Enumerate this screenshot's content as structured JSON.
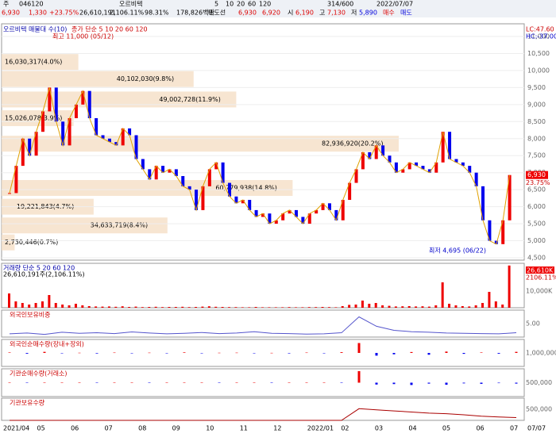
{
  "toolbar": {
    "period": "주",
    "code": "046120",
    "name": "오르비텍",
    "intervals": [
      "5",
      "10",
      "20",
      "60",
      "120"
    ],
    "count": "314/600",
    "date": "2022/07/07"
  },
  "quote": {
    "price": "6,930",
    "change": "1,330",
    "rate": "+23.75%",
    "volume": "26,610,191",
    "vol_rate": "2,106.11%",
    "ratio": "98.31%",
    "amount": "178,826백만",
    "label": "매도선",
    "ask": "6,930",
    "bid": "6,920",
    "open_label": "시",
    "open": "6,190",
    "high_label": "고",
    "high": "7,130",
    "low_label": "저",
    "low": "5,890",
    "buy": "매수",
    "sell": "매도"
  },
  "price_panel": {
    "legend": "오르비텍 매물대 수(10)",
    "ma_legend": "종가 단순 5 10 20 60 120",
    "lc": "LC:47.60",
    "hc": "HC:-37.00",
    "high_note": "최고 11,000 (05/12)",
    "low_note": "최저 4,695 (06/22)",
    "current": "6,930",
    "current_rate": "23.75%",
    "ylim": [
      4500,
      11000
    ],
    "yticks": [
      {
        "value": 4500,
        "label": "4,500"
      },
      {
        "value": 5000,
        "label": "5,000"
      },
      {
        "value": 5500,
        "label": "5,500"
      },
      {
        "value": 6000,
        "label": "6,000"
      },
      {
        "value": 6500,
        "label": "6,500"
      },
      {
        "value": 7000,
        "label": "7,000"
      },
      {
        "value": 7500,
        "label": "7,500"
      },
      {
        "value": 8000,
        "label": "8,000"
      },
      {
        "value": 8500,
        "label": "8,500"
      },
      {
        "value": 9000,
        "label": "9,000"
      },
      {
        "value": 9500,
        "label": "9,500"
      },
      {
        "value": 10000,
        "label": "10,000"
      },
      {
        "value": 10500,
        "label": "10,500"
      },
      {
        "value": 11000,
        "label": "11,000"
      }
    ],
    "closes": [
      6400,
      7200,
      8000,
      7500,
      8200,
      8800,
      9500,
      8500,
      7800,
      8600,
      9000,
      9400,
      8600,
      8100,
      8000,
      7900,
      7800,
      8300,
      8100,
      7400,
      7100,
      6800,
      7200,
      7000,
      7100,
      6900,
      6600,
      6500,
      5900,
      6600,
      7100,
      7300,
      6700,
      6300,
      6100,
      6200,
      5900,
      5700,
      5800,
      5500,
      5600,
      5800,
      5900,
      5700,
      5500,
      5800,
      5900,
      6100,
      5900,
      5600,
      6200,
      6700,
      7100,
      7600,
      7400,
      7800,
      7500,
      7300,
      7000,
      7100,
      7300,
      7200,
      7100,
      7000,
      7300,
      8200,
      7400,
      7300,
      7200,
      7000,
      6600,
      5600,
      5000,
      4900,
      5600,
      6930
    ],
    "profile": [
      {
        "value": 16030317,
        "label": "16,030,317(4.0%)",
        "price": 10250
      },
      {
        "value": 40102030,
        "label": "40,102,030(9.8%)",
        "price": 9750
      },
      {
        "value": 49002728,
        "label": "49,002,728(11.9%)",
        "price": 9150
      },
      {
        "value": 15026078,
        "label": "15,026,078(3.9%)",
        "price": 8600
      },
      {
        "value": 82936920,
        "label": "82,936,920(20.2%)",
        "price": 7850
      },
      {
        "value": 60779938,
        "label": "60,779,938(14.8%)",
        "price": 6550
      },
      {
        "value": 19221843,
        "label": "19,221,843(4.7%)",
        "price": 6000
      },
      {
        "value": 34633719,
        "label": "34,633,719(8.4%)",
        "price": 5450
      },
      {
        "value": 2730446,
        "label": "2,730,446(0.7%)",
        "price": 4950
      }
    ]
  },
  "volume_panel": {
    "legend": "거래량 단순 5 20 60 120",
    "summary": "26,610,191주(2,106.11%)",
    "right_value": "26,610K",
    "right_rate": "2106.11%",
    "tick": "10,000K",
    "ylim": [
      0,
      27000
    ],
    "values": [
      9000,
      4000,
      3000,
      2000,
      3000,
      4000,
      8000,
      3000,
      2000,
      1500,
      2500,
      1500,
      1000,
      800,
      700,
      800,
      600,
      900,
      500,
      700,
      400,
      500,
      600,
      400,
      500,
      500,
      600,
      400,
      500,
      700,
      900,
      600,
      500,
      400,
      400,
      300,
      300,
      500,
      300,
      300,
      300,
      300,
      400,
      300,
      300,
      400,
      400,
      500,
      400,
      300,
      1000,
      1800,
      2000,
      4500,
      2500,
      3000,
      1500,
      1200,
      800,
      900,
      1000,
      800,
      900,
      700,
      1500,
      16000,
      2500,
      1500,
      1000,
      800,
      1500,
      3000,
      10000,
      4000,
      2000,
      26610
    ]
  },
  "foreign_panel": {
    "title": "외국인보유비중",
    "tick": "5.00",
    "ylim": [
      0,
      10
    ],
    "values": [
      1.2,
      1.5,
      1.0,
      1.8,
      1.4,
      1.6,
      1.3,
      1.9,
      1.5,
      1.2,
      1.4,
      1.7,
      1.3,
      1.5,
      2.0,
      1.4,
      1.3,
      1.1,
      1.2,
      1.6,
      7.5,
      4.0,
      2.5,
      2.0,
      1.8,
      1.5,
      1.4,
      1.3,
      1.2,
      1.6
    ]
  },
  "foreign_net_panel": {
    "title": "외국인순매수량(장내+장외)",
    "tick": "1,000,000",
    "ylim": [
      -1500000,
      1500000
    ],
    "values": [
      50000,
      -80000,
      120000,
      -30000,
      20000,
      -60000,
      40000,
      -20000,
      30000,
      -10000,
      60000,
      -40000,
      20000,
      30000,
      -20000,
      10000,
      -50000,
      40000,
      -30000,
      80000,
      1100000,
      -300000,
      -150000,
      100000,
      -200000,
      150000,
      -100000,
      50000,
      -80000,
      120000
    ]
  },
  "inst_net_panel": {
    "title": "기관순매수량(거래소)",
    "tick": "500,000",
    "ylim": [
      -600000,
      600000
    ],
    "values": [
      5000,
      -3000,
      2000,
      0,
      1000,
      -2000,
      3000,
      0,
      -1000,
      2000,
      0,
      1000,
      -500,
      0,
      2000,
      -1000,
      0,
      1500,
      0,
      -2000,
      500000,
      -80000,
      -60000,
      -100000,
      -40000,
      -90000,
      -30000,
      -50000,
      -20000,
      -40000
    ]
  },
  "inst_hold_panel": {
    "title": "기관보유수량",
    "tick": "500,000",
    "ylim": [
      0,
      800000
    ],
    "values": [
      0,
      0,
      0,
      0,
      0,
      0,
      0,
      0,
      0,
      0,
      0,
      0,
      0,
      0,
      0,
      0,
      0,
      0,
      0,
      0,
      420000,
      380000,
      340000,
      300000,
      260000,
      240000,
      200000,
      150000,
      120000,
      100000
    ]
  },
  "x_axis": {
    "labels": [
      "2021/04",
      "05",
      "06",
      "07",
      "08",
      "09",
      "10",
      "11",
      "12",
      "2022/01",
      "02",
      "03",
      "04",
      "05",
      "06",
      "07"
    ],
    "last": "07/07"
  }
}
